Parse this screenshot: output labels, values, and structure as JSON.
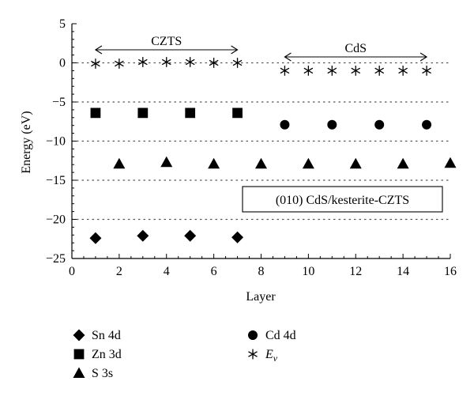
{
  "chart_data": {
    "type": "scatter",
    "xlabel": "Layer",
    "ylabel": "Energy (eV)",
    "xlim": [
      0,
      16
    ],
    "ylim": [
      -25,
      5
    ],
    "xticks": [
      0,
      2,
      4,
      6,
      8,
      10,
      12,
      14,
      16
    ],
    "yticks": [
      5,
      0,
      -5,
      -10,
      -15,
      -20,
      -25
    ],
    "grid": "horizontal dotted",
    "annotations": {
      "region_czts": {
        "label": "CZTS",
        "x_from": 1,
        "x_to": 7
      },
      "region_cds": {
        "label": "CdS",
        "x_from": 9,
        "x_to": 15
      },
      "box_label": "(010) CdS/kesterite-CZTS"
    },
    "legend_position": "below plot",
    "series": [
      {
        "name": "Sn 4d",
        "marker": "diamond",
        "x": [
          1,
          3,
          5,
          7
        ],
        "y": [
          -22.4,
          -22.1,
          -22.1,
          -22.3
        ]
      },
      {
        "name": "Zn 3d",
        "marker": "square",
        "x": [
          1,
          3,
          5,
          7
        ],
        "y": [
          -6.4,
          -6.4,
          -6.4,
          -6.4
        ]
      },
      {
        "name": "S 3s",
        "marker": "triangle",
        "x": [
          2,
          4,
          6,
          8,
          10,
          12,
          14,
          16
        ],
        "y": [
          -12.9,
          -12.7,
          -12.9,
          -12.9,
          -12.9,
          -12.9,
          -12.9,
          -12.8
        ]
      },
      {
        "name": "Cd 4d",
        "marker": "circle",
        "x": [
          9,
          11,
          13,
          15
        ],
        "y": [
          -7.9,
          -7.9,
          -7.9,
          -7.9
        ]
      },
      {
        "name": "E",
        "name_subscript": "v",
        "marker": "asterisk",
        "x": [
          1,
          2,
          3,
          4,
          5,
          6,
          7,
          9,
          10,
          11,
          12,
          13,
          14,
          15
        ],
        "y": [
          -0.1,
          -0.1,
          0.1,
          0.1,
          0.1,
          0.0,
          0.0,
          -1.0,
          -1.0,
          -1.0,
          -1.0,
          -1.0,
          -1.0,
          -1.0
        ]
      }
    ]
  }
}
